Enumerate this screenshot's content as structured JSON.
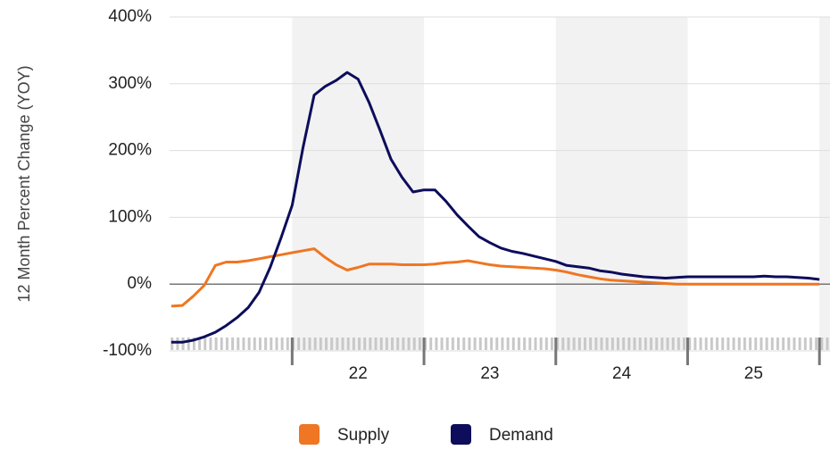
{
  "chart_data": {
    "type": "line",
    "y_label": "12 Month Percent Change (YOY)",
    "x": [
      2021.083,
      2021.167,
      2021.25,
      2021.333,
      2021.417,
      2021.5,
      2021.583,
      2021.667,
      2021.75,
      2021.833,
      2021.917,
      2022,
      2022.083,
      2022.167,
      2022.25,
      2022.333,
      2022.417,
      2022.5,
      2022.583,
      2022.667,
      2022.75,
      2022.833,
      2022.917,
      2023,
      2023.083,
      2023.167,
      2023.25,
      2023.333,
      2023.417,
      2023.5,
      2023.583,
      2023.667,
      2023.75,
      2023.833,
      2023.917,
      2024,
      2024.083,
      2024.167,
      2024.25,
      2024.333,
      2024.417,
      2024.5,
      2024.583,
      2024.667,
      2024.75,
      2024.833,
      2024.917,
      2025,
      2025.083,
      2025.167,
      2025.25,
      2025.333,
      2025.417,
      2025.5,
      2025.583,
      2025.667,
      2025.75,
      2025.833,
      2025.917,
      2026
    ],
    "series": [
      {
        "name": "Supply",
        "color": "#ef7622",
        "values": [
          -33,
          -32,
          -18,
          -2,
          28,
          33,
          33,
          35,
          38,
          41,
          44,
          47,
          50,
          53,
          40,
          29,
          21,
          25,
          30,
          30,
          30,
          29,
          29,
          29,
          30,
          32,
          33,
          35,
          32,
          29,
          27,
          26,
          25,
          24,
          23,
          21,
          18,
          14,
          11,
          8,
          6,
          5,
          4,
          3,
          2,
          1,
          0,
          0,
          0,
          0,
          0,
          0,
          0,
          0,
          0,
          0,
          0,
          0,
          0,
          0
        ]
      },
      {
        "name": "Demand",
        "color": "#0d0d5c",
        "values": [
          -87,
          -87,
          -84,
          -79,
          -72,
          -62,
          -50,
          -35,
          -12,
          25,
          70,
          118,
          205,
          283,
          296,
          305,
          317,
          307,
          272,
          230,
          187,
          160,
          138,
          141,
          141,
          124,
          104,
          87,
          71,
          62,
          54,
          49,
          46,
          42,
          38,
          34,
          28,
          26,
          24,
          20,
          18,
          15,
          13,
          11,
          10,
          9,
          10,
          11,
          11,
          11,
          11,
          11,
          11,
          11,
          12,
          11,
          11,
          10,
          9,
          7
        ]
      }
    ],
    "xlim": [
      2021.07,
      2026.08
    ],
    "xticks": [
      {
        "value": 2022.5,
        "label": "22"
      },
      {
        "value": 2023.5,
        "label": "23"
      },
      {
        "value": 2024.5,
        "label": "24"
      },
      {
        "value": 2025.5,
        "label": "25"
      }
    ],
    "year_boundaries": [
      2022,
      2023,
      2024,
      2025,
      2026
    ],
    "bands": [
      [
        2022,
        2023
      ],
      [
        2024,
        2025
      ],
      [
        2026,
        2026.08
      ]
    ],
    "ylim": [
      -100,
      400
    ],
    "yticks": [
      {
        "value": -100,
        "label": "-100%"
      },
      {
        "value": 0,
        "label": "0%"
      },
      {
        "value": 100,
        "label": "100%"
      },
      {
        "value": 200,
        "label": "200%"
      },
      {
        "value": 300,
        "label": "300%"
      },
      {
        "value": 400,
        "label": "400%"
      }
    ],
    "grid": true
  }
}
